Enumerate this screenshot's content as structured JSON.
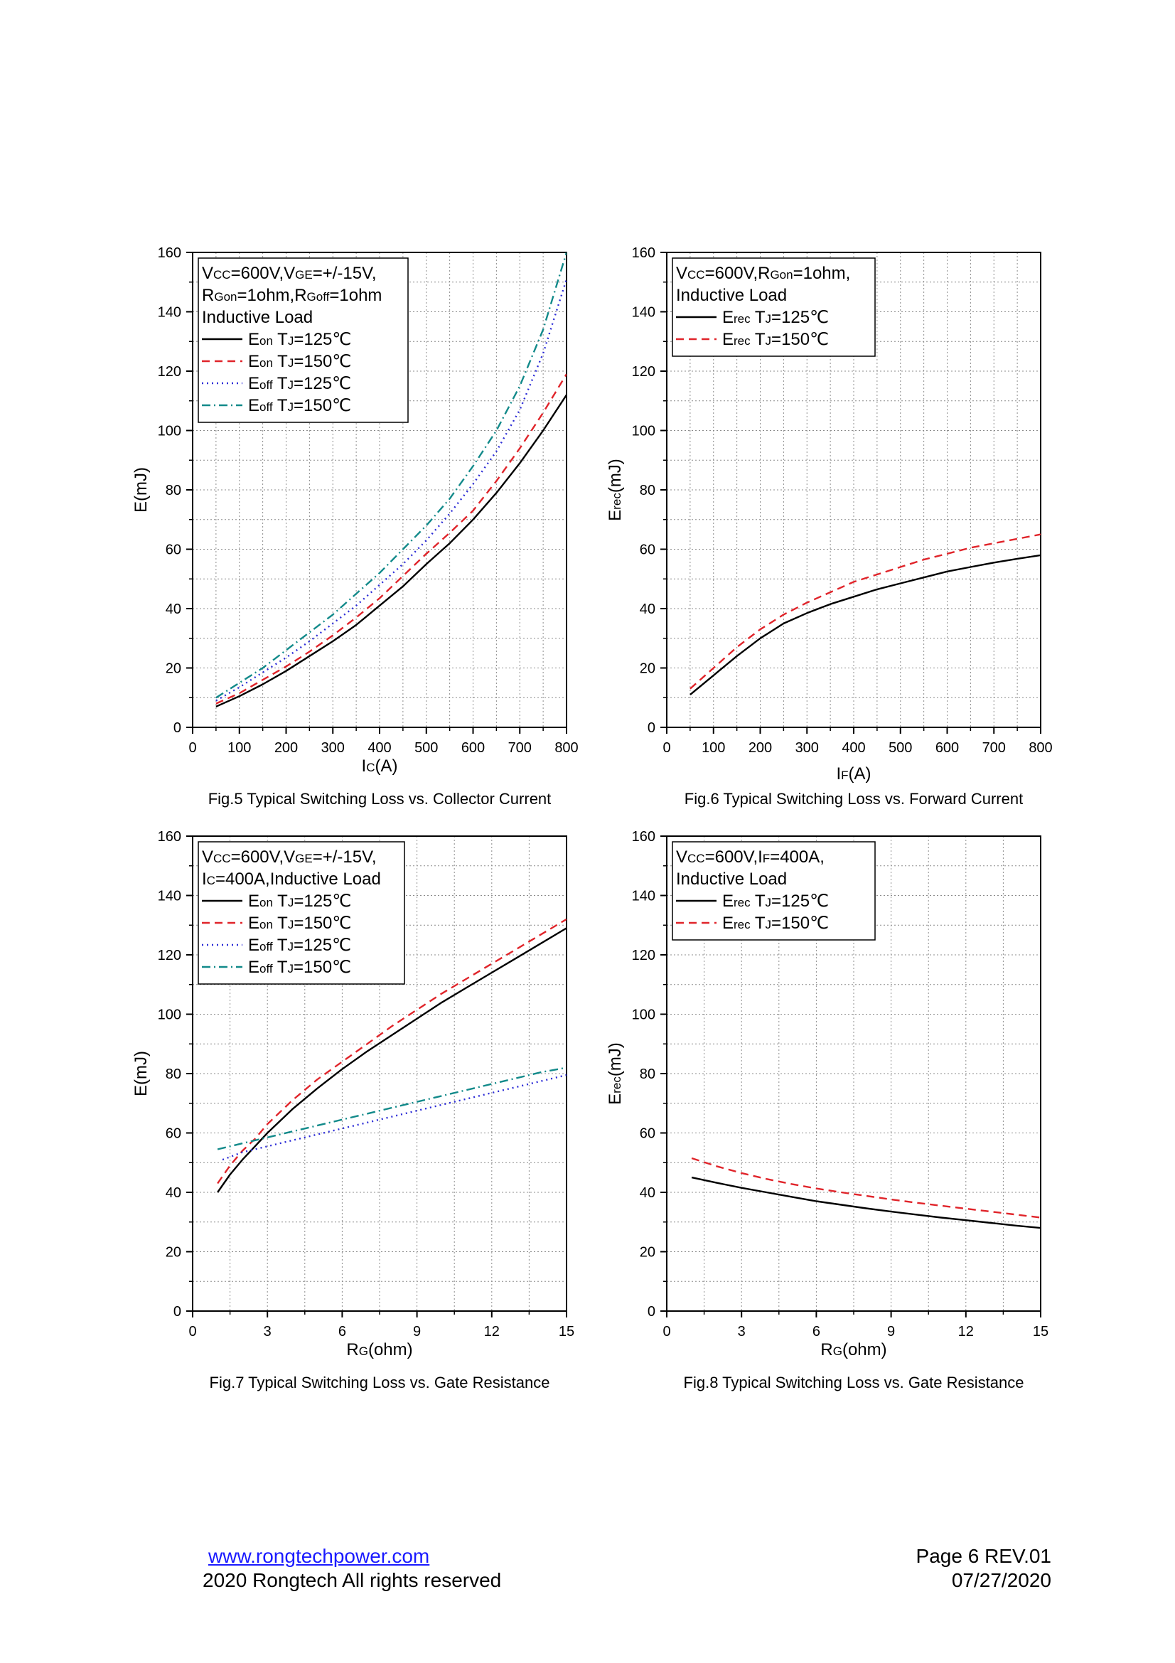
{
  "page": {
    "footer": {
      "website": "www.rongtechpower.com",
      "copyright": "2020 Rongtech All rights reserved",
      "page_label": "Page 6  REV.01",
      "date": "07/27/2020"
    }
  },
  "colors": {
    "s1": "#000000",
    "s2": "#e0242a",
    "s3": "#2b2bd6",
    "s4": "#128a8a",
    "grid": "#8c8c8c"
  },
  "chart_data": [
    {
      "type": "line",
      "caption": "Fig.5 Typical Switching Loss vs. Collector Current",
      "xlabel": {
        "main": "I",
        "sub": "C",
        "rest": "(A)"
      },
      "ylabel": {
        "main": "E",
        "sub": "",
        "rest": "(mJ)"
      },
      "xlim": [
        0,
        800
      ],
      "ylim": [
        0,
        160
      ],
      "xticks": [
        0,
        100,
        200,
        300,
        400,
        500,
        600,
        700,
        800
      ],
      "yticks": [
        0,
        20,
        40,
        60,
        80,
        100,
        120,
        140,
        160
      ],
      "legend": {
        "position": "top-left",
        "lines": [
          [
            {
              "t": "V"
            },
            {
              "t": "CC",
              "sub": true
            },
            {
              "t": "=600V,V"
            },
            {
              "t": "GE",
              "sub": true
            },
            {
              "t": "=+/-15V,"
            }
          ],
          [
            {
              "t": "R"
            },
            {
              "t": "Gon",
              "sub": true
            },
            {
              "t": "=1ohm,R"
            },
            {
              "t": "Goff",
              "sub": true
            },
            {
              "t": "=1ohm"
            }
          ],
          [
            {
              "t": "Inductive Load"
            }
          ]
        ],
        "entries": [
          [
            {
              "t": "E"
            },
            {
              "t": "on",
              "sub": true
            },
            {
              "t": " T"
            },
            {
              "t": "J",
              "sub": true
            },
            {
              "t": "=125℃"
            }
          ],
          [
            {
              "t": "E"
            },
            {
              "t": "on",
              "sub": true
            },
            {
              "t": " T"
            },
            {
              "t": "J",
              "sub": true
            },
            {
              "t": "=150℃"
            }
          ],
          [
            {
              "t": "E"
            },
            {
              "t": "off",
              "sub": true
            },
            {
              "t": " T"
            },
            {
              "t": "J",
              "sub": true
            },
            {
              "t": "=125℃"
            }
          ],
          [
            {
              "t": "E"
            },
            {
              "t": "off",
              "sub": true
            },
            {
              "t": " T"
            },
            {
              "t": "J",
              "sub": true
            },
            {
              "t": "=150℃"
            }
          ]
        ]
      },
      "series": [
        {
          "name": "Eon TJ=125℃",
          "style": "solid",
          "color": "s1",
          "x": [
            50,
            100,
            150,
            200,
            250,
            300,
            350,
            400,
            450,
            500,
            550,
            600,
            650,
            700,
            750,
            800
          ],
          "y": [
            7,
            10.5,
            14.5,
            19,
            24,
            29,
            34.5,
            41,
            47.5,
            55,
            62,
            70,
            79,
            89,
            100,
            112
          ]
        },
        {
          "name": "Eon TJ=150℃",
          "style": "dash",
          "color": "s2",
          "x": [
            50,
            100,
            150,
            200,
            250,
            300,
            350,
            400,
            450,
            500,
            550,
            600,
            650,
            700,
            750,
            800
          ],
          "y": [
            8,
            11.5,
            16,
            20.5,
            25.5,
            31,
            37,
            43.5,
            51,
            58.5,
            65.5,
            73,
            83,
            94,
            106,
            119
          ]
        },
        {
          "name": "Eoff TJ=125℃",
          "style": "dot",
          "color": "s3",
          "x": [
            50,
            100,
            150,
            200,
            250,
            300,
            350,
            400,
            450,
            500,
            550,
            600,
            650,
            700,
            750,
            800
          ],
          "y": [
            9,
            13.5,
            18.5,
            23.5,
            29,
            35,
            41,
            48,
            55,
            63,
            72,
            82,
            93,
            107,
            126,
            151
          ]
        },
        {
          "name": "Eoff TJ=150℃",
          "style": "dashdot",
          "color": "s4",
          "x": [
            50,
            100,
            150,
            200,
            250,
            300,
            350,
            400,
            450,
            500,
            550,
            600,
            650,
            700,
            750,
            800
          ],
          "y": [
            10,
            15,
            20,
            26,
            32,
            38,
            45,
            52,
            60,
            68,
            77,
            88,
            100,
            115,
            134,
            160
          ]
        }
      ]
    },
    {
      "type": "line",
      "caption": "Fig.6 Typical Switching Loss vs. Forward Current",
      "xlabel": {
        "main": "I",
        "sub": "F",
        "rest": "(A)"
      },
      "ylabel": {
        "main": "E",
        "sub": "rec",
        "rest": "(mJ)"
      },
      "xlim": [
        0,
        800
      ],
      "ylim": [
        0,
        160
      ],
      "xticks": [
        0,
        100,
        200,
        300,
        400,
        500,
        600,
        700,
        800
      ],
      "yticks": [
        0,
        20,
        40,
        60,
        80,
        100,
        120,
        140,
        160
      ],
      "legend": {
        "position": "top-left",
        "lines": [
          [
            {
              "t": "V"
            },
            {
              "t": "CC",
              "sub": true
            },
            {
              "t": "=600V,R"
            },
            {
              "t": "Gon",
              "sub": true
            },
            {
              "t": "=1ohm,"
            }
          ],
          [
            {
              "t": "Inductive Load"
            }
          ]
        ],
        "entries": [
          [
            {
              "t": "E"
            },
            {
              "t": "rec",
              "sub": true
            },
            {
              "t": " T"
            },
            {
              "t": "J",
              "sub": true
            },
            {
              "t": "=125℃"
            }
          ],
          [
            {
              "t": "E"
            },
            {
              "t": "rec",
              "sub": true
            },
            {
              "t": " T"
            },
            {
              "t": "J",
              "sub": true
            },
            {
              "t": "=150℃"
            }
          ]
        ]
      },
      "series": [
        {
          "name": "Erec TJ=125℃",
          "style": "solid",
          "color": "s1",
          "x": [
            50,
            100,
            150,
            200,
            250,
            300,
            350,
            400,
            450,
            500,
            550,
            600,
            650,
            700,
            750,
            800
          ],
          "y": [
            11,
            17.5,
            24,
            30,
            35,
            38.5,
            41.5,
            44,
            46.5,
            48.5,
            50.5,
            52.5,
            54,
            55.5,
            56.8,
            58
          ]
        },
        {
          "name": "Erec TJ=150℃",
          "style": "dash",
          "color": "s2",
          "x": [
            50,
            100,
            150,
            200,
            250,
            300,
            350,
            400,
            450,
            500,
            550,
            600,
            650,
            700,
            750,
            800
          ],
          "y": [
            13,
            20,
            27,
            33,
            38,
            42,
            45.5,
            49,
            51.5,
            54,
            56.5,
            58.5,
            60.5,
            62,
            63.5,
            65
          ]
        }
      ]
    },
    {
      "type": "line",
      "caption": "Fig.7 Typical Switching Loss vs. Gate Resistance",
      "xlabel": {
        "main": "R",
        "sub": "G",
        "rest": "(ohm)"
      },
      "ylabel": {
        "main": "E",
        "sub": "",
        "rest": "(mJ)"
      },
      "xlim": [
        0,
        15
      ],
      "ylim": [
        0,
        160
      ],
      "xticks": [
        0,
        3,
        6,
        9,
        12,
        15
      ],
      "yticks": [
        0,
        20,
        40,
        60,
        80,
        100,
        120,
        140,
        160
      ],
      "legend": {
        "position": "top-left",
        "lines": [
          [
            {
              "t": "V"
            },
            {
              "t": "CC",
              "sub": true
            },
            {
              "t": "=600V,V"
            },
            {
              "t": "GE",
              "sub": true
            },
            {
              "t": "=+/-15V,"
            }
          ],
          [
            {
              "t": "I"
            },
            {
              "t": "C",
              "sub": true
            },
            {
              "t": "=400A,Inductive Load"
            }
          ]
        ],
        "entries": [
          [
            {
              "t": "E"
            },
            {
              "t": "on",
              "sub": true
            },
            {
              "t": " T"
            },
            {
              "t": "J",
              "sub": true
            },
            {
              "t": "=125℃"
            }
          ],
          [
            {
              "t": "E"
            },
            {
              "t": "on",
              "sub": true
            },
            {
              "t": " T"
            },
            {
              "t": "J",
              "sub": true
            },
            {
              "t": "=150℃"
            }
          ],
          [
            {
              "t": "E"
            },
            {
              "t": "off",
              "sub": true
            },
            {
              "t": " T"
            },
            {
              "t": "J",
              "sub": true
            },
            {
              "t": "=125℃"
            }
          ],
          [
            {
              "t": "E"
            },
            {
              "t": "off",
              "sub": true
            },
            {
              "t": " T"
            },
            {
              "t": "J",
              "sub": true
            },
            {
              "t": "=150℃"
            }
          ]
        ]
      },
      "series": [
        {
          "name": "Eon TJ=125℃",
          "style": "solid",
          "color": "s1",
          "x": [
            1,
            1.5,
            2,
            2.5,
            3,
            4,
            5,
            6,
            7,
            8,
            9,
            10,
            11,
            12,
            13,
            14,
            15
          ],
          "y": [
            40,
            46,
            51,
            55.5,
            60,
            68,
            75,
            81.5,
            87.5,
            93,
            98.5,
            104,
            109,
            114,
            119,
            124,
            129
          ]
        },
        {
          "name": "Eon TJ=150℃",
          "style": "dash",
          "color": "s2",
          "x": [
            1,
            1.5,
            2,
            2.5,
            3,
            4,
            5,
            6,
            7,
            8,
            9,
            10,
            11,
            12,
            13,
            14,
            15
          ],
          "y": [
            43,
            49,
            54,
            58,
            63,
            71,
            78,
            84,
            90,
            96,
            101.5,
            107,
            112,
            117,
            122,
            127,
            132
          ]
        },
        {
          "name": "Eoff TJ=125℃",
          "style": "dot",
          "color": "s3",
          "x": [
            1.2,
            2,
            3,
            4,
            5,
            6,
            7,
            8,
            9,
            10,
            11,
            12,
            13,
            14,
            15
          ],
          "y": [
            51,
            53.5,
            55.5,
            57.5,
            59.5,
            61.5,
            63.5,
            65.5,
            67.5,
            69.5,
            71.5,
            73.5,
            75.5,
            77.5,
            79.5
          ]
        },
        {
          "name": "Eoff TJ=150℃",
          "style": "dashdot",
          "color": "s4",
          "x": [
            1,
            2,
            3,
            4,
            5,
            6,
            7,
            8,
            9,
            10,
            11,
            12,
            13,
            14,
            15
          ],
          "y": [
            54.5,
            56.5,
            58.5,
            60.5,
            62.5,
            64.5,
            66.5,
            68.5,
            70.5,
            72.5,
            74.5,
            76.5,
            78.5,
            80.5,
            82
          ]
        }
      ]
    },
    {
      "type": "line",
      "caption": "Fig.8 Typical Switching Loss vs. Gate Resistance",
      "xlabel": {
        "main": "R",
        "sub": "G",
        "rest": "(ohm)"
      },
      "ylabel": {
        "main": "E",
        "sub": "rec",
        "rest": "(mJ)"
      },
      "xlim": [
        0,
        15
      ],
      "ylim": [
        0,
        160
      ],
      "xticks": [
        0,
        3,
        6,
        9,
        12,
        15
      ],
      "yticks": [
        0,
        20,
        40,
        60,
        80,
        100,
        120,
        140,
        160
      ],
      "legend": {
        "position": "top-left",
        "lines": [
          [
            {
              "t": "V"
            },
            {
              "t": "CC",
              "sub": true
            },
            {
              "t": "=600V,I"
            },
            {
              "t": "F",
              "sub": true
            },
            {
              "t": "=400A,"
            }
          ],
          [
            {
              "t": "Inductive Load"
            }
          ]
        ],
        "entries": [
          [
            {
              "t": "E"
            },
            {
              "t": "rec",
              "sub": true
            },
            {
              "t": " T"
            },
            {
              "t": "J",
              "sub": true
            },
            {
              "t": "=125℃"
            }
          ],
          [
            {
              "t": "E"
            },
            {
              "t": "rec",
              "sub": true
            },
            {
              "t": " T"
            },
            {
              "t": "J",
              "sub": true
            },
            {
              "t": "=150℃"
            }
          ]
        ]
      },
      "series": [
        {
          "name": "Erec TJ=125℃",
          "style": "solid",
          "color": "s1",
          "x": [
            1,
            2,
            3,
            4,
            5,
            6,
            7,
            8,
            9,
            10,
            11,
            12,
            13,
            14,
            15
          ],
          "y": [
            45,
            43.2,
            41.5,
            40,
            38.5,
            37,
            35.8,
            34.6,
            33.5,
            32.5,
            31.5,
            30.6,
            29.7,
            28.8,
            28
          ]
        },
        {
          "name": "Erec TJ=150℃",
          "style": "dash",
          "color": "s2",
          "x": [
            1,
            2,
            3,
            4,
            5,
            6,
            7,
            8,
            9,
            10,
            11,
            12,
            13,
            14,
            15
          ],
          "y": [
            51.5,
            48.8,
            46.5,
            44.5,
            42.8,
            41.3,
            40,
            38.8,
            37.6,
            36.5,
            35.5,
            34.5,
            33.5,
            32.5,
            31.5
          ]
        }
      ]
    }
  ]
}
